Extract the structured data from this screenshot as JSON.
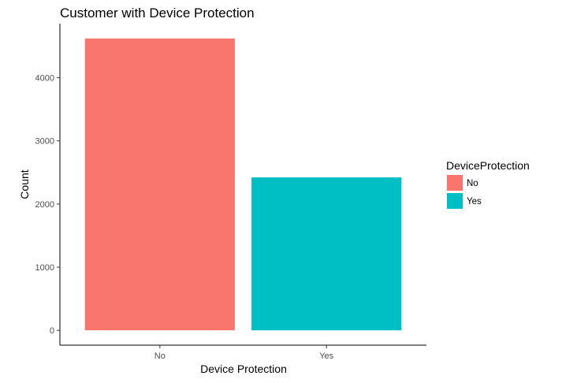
{
  "chart_data": {
    "type": "bar",
    "title": "Customer with Device Protection",
    "xlabel": "Device Protection",
    "ylabel": "Count",
    "categories": [
      "No",
      "Yes"
    ],
    "values": [
      4621,
      2422
    ],
    "colors": [
      "#F8766D",
      "#00BFC4"
    ],
    "ylim": [
      -235,
      4856
    ],
    "yticks": [
      0,
      1000,
      2000,
      3000,
      4000
    ],
    "ytick_labels": [
      "0",
      "1000",
      "2000",
      "3000",
      "4000"
    ],
    "grid": false,
    "legend": {
      "title": "DeviceProtection",
      "position": "right",
      "entries": [
        "No",
        "Yes"
      ]
    }
  }
}
